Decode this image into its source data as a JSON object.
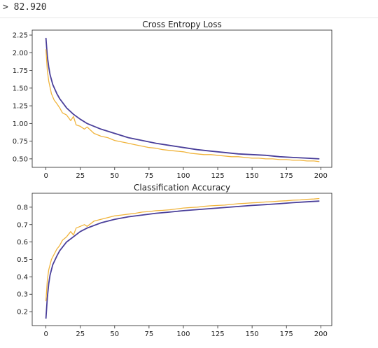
{
  "console": {
    "prompt": ">",
    "value": "82.920"
  },
  "colors": {
    "train": "#f0b43c",
    "test": "#4a3f9a",
    "axis": "#222222"
  },
  "chart_data": [
    {
      "type": "line",
      "title": "Cross Entropy Loss",
      "xlim": [
        -10,
        208
      ],
      "ylim": [
        0.38,
        2.32
      ],
      "xticks": [
        0,
        25,
        50,
        75,
        100,
        125,
        150,
        175,
        200
      ],
      "yticks": [
        "0.50",
        "0.75",
        "1.00",
        "1.25",
        "1.50",
        "1.75",
        "2.00",
        "2.25"
      ],
      "series": [
        {
          "color": "#4a3f9a",
          "x": [
            0,
            1,
            2,
            3,
            5,
            8,
            10,
            15,
            20,
            25,
            30,
            40,
            50,
            60,
            70,
            80,
            90,
            100,
            110,
            120,
            130,
            140,
            150,
            160,
            170,
            180,
            190,
            199
          ],
          "y": [
            2.21,
            1.95,
            1.8,
            1.69,
            1.55,
            1.42,
            1.35,
            1.22,
            1.13,
            1.06,
            1.0,
            0.92,
            0.86,
            0.8,
            0.76,
            0.72,
            0.69,
            0.66,
            0.63,
            0.61,
            0.59,
            0.57,
            0.56,
            0.55,
            0.53,
            0.52,
            0.51,
            0.5
          ]
        },
        {
          "color": "#f0b43c",
          "x": [
            0,
            1,
            2,
            4,
            6,
            8,
            10,
            12,
            15,
            18,
            20,
            22,
            25,
            28,
            30,
            35,
            40,
            45,
            50,
            55,
            60,
            65,
            70,
            75,
            80,
            85,
            90,
            95,
            100,
            105,
            110,
            115,
            120,
            125,
            130,
            135,
            140,
            145,
            150,
            155,
            160,
            165,
            170,
            175,
            180,
            185,
            190,
            195,
            199
          ],
          "y": [
            2.05,
            1.75,
            1.6,
            1.42,
            1.33,
            1.28,
            1.22,
            1.15,
            1.12,
            1.04,
            1.1,
            0.98,
            0.96,
            0.92,
            0.95,
            0.86,
            0.82,
            0.8,
            0.76,
            0.74,
            0.72,
            0.7,
            0.68,
            0.66,
            0.65,
            0.63,
            0.62,
            0.61,
            0.6,
            0.58,
            0.57,
            0.56,
            0.56,
            0.55,
            0.54,
            0.53,
            0.53,
            0.52,
            0.51,
            0.51,
            0.5,
            0.5,
            0.49,
            0.49,
            0.48,
            0.48,
            0.47,
            0.47,
            0.46
          ]
        }
      ]
    },
    {
      "type": "line",
      "title": "Classification Accuracy",
      "xlim": [
        -10,
        208
      ],
      "ylim": [
        0.12,
        0.88
      ],
      "xticks": [
        0,
        25,
        50,
        75,
        100,
        125,
        150,
        175,
        200
      ],
      "yticks": [
        "0.2",
        "0.3",
        "0.4",
        "0.5",
        "0.6",
        "0.7",
        "0.8"
      ],
      "series": [
        {
          "color": "#4a3f9a",
          "x": [
            0,
            1,
            2,
            3,
            5,
            8,
            10,
            15,
            20,
            25,
            30,
            40,
            50,
            60,
            70,
            80,
            90,
            100,
            110,
            120,
            130,
            140,
            150,
            160,
            170,
            180,
            190,
            199
          ],
          "y": [
            0.16,
            0.28,
            0.36,
            0.41,
            0.47,
            0.52,
            0.55,
            0.6,
            0.63,
            0.66,
            0.68,
            0.71,
            0.73,
            0.745,
            0.755,
            0.765,
            0.772,
            0.78,
            0.786,
            0.792,
            0.798,
            0.804,
            0.81,
            0.815,
            0.82,
            0.826,
            0.831,
            0.835
          ]
        },
        {
          "color": "#f0b43c",
          "x": [
            0,
            1,
            2,
            4,
            6,
            8,
            10,
            12,
            15,
            18,
            20,
            22,
            25,
            28,
            30,
            35,
            40,
            45,
            50,
            55,
            60,
            65,
            70,
            75,
            80,
            85,
            90,
            95,
            100,
            105,
            110,
            115,
            120,
            125,
            130,
            135,
            140,
            145,
            150,
            155,
            160,
            165,
            170,
            175,
            180,
            185,
            190,
            195,
            199
          ],
          "y": [
            0.26,
            0.38,
            0.44,
            0.5,
            0.53,
            0.56,
            0.58,
            0.61,
            0.63,
            0.66,
            0.64,
            0.68,
            0.69,
            0.7,
            0.69,
            0.72,
            0.73,
            0.74,
            0.75,
            0.755,
            0.76,
            0.765,
            0.772,
            0.775,
            0.78,
            0.782,
            0.785,
            0.79,
            0.795,
            0.798,
            0.8,
            0.805,
            0.808,
            0.81,
            0.812,
            0.816,
            0.82,
            0.822,
            0.825,
            0.827,
            0.83,
            0.832,
            0.835,
            0.837,
            0.84,
            0.842,
            0.845,
            0.847,
            0.85
          ]
        }
      ]
    }
  ]
}
